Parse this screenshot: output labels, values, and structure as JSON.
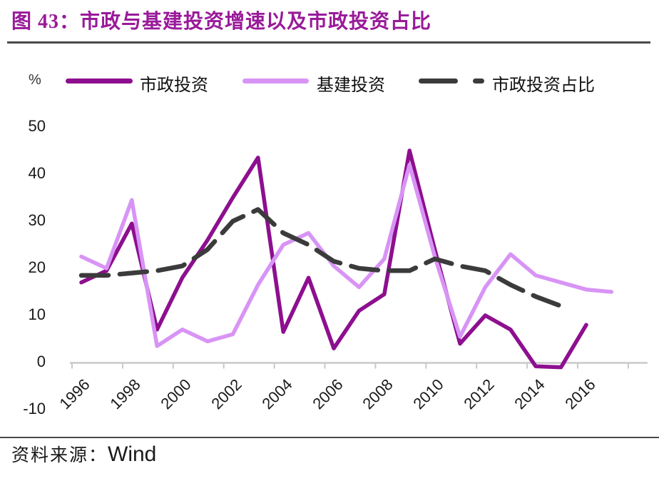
{
  "figure": {
    "title": "图 43：市政与基建投资增速以及市政投资占比"
  },
  "y_unit": "%",
  "legend": [
    {
      "label": "市政投资",
      "color": "#8d0f8f",
      "style": "solid"
    },
    {
      "label": "基建投资",
      "color": "#d894f5",
      "style": "solid"
    },
    {
      "label": "市政投资占比",
      "color": "#3b3b3b",
      "style": "dashed"
    }
  ],
  "source": {
    "label": "资料来源：",
    "name": "Wind"
  },
  "colors": {
    "title": "#991a99",
    "axis": "#c9c9c9",
    "rule": "#4a4a4a",
    "text": "#1a1a1a"
  },
  "chart_data": {
    "type": "line",
    "title": "图 43：市政与基建投资增速以及市政投资占比",
    "xlabel": "",
    "ylabel": "%",
    "x": [
      1996,
      1997,
      1998,
      1999,
      2000,
      2001,
      2002,
      2003,
      2004,
      2005,
      2006,
      2007,
      2008,
      2009,
      2010,
      2011,
      2012,
      2013,
      2014,
      2015,
      2016,
      2017
    ],
    "series": [
      {
        "name": "市政投资",
        "color": "#8d0f8f",
        "dashed": false,
        "values": [
          17,
          19.5,
          29.5,
          7,
          18,
          26,
          35,
          43.5,
          6.5,
          18,
          3,
          11,
          14.5,
          45,
          24,
          4,
          10,
          7,
          -0.8,
          -1,
          8,
          null
        ]
      },
      {
        "name": "基建投资",
        "color": "#d894f5",
        "dashed": false,
        "values": [
          22.5,
          20,
          34.5,
          3.5,
          7,
          4.5,
          6,
          16.5,
          25,
          27.5,
          20.5,
          16,
          22,
          42,
          22.5,
          5.5,
          16,
          23,
          18.5,
          17,
          15.5,
          15
        ]
      },
      {
        "name": "市政投资占比",
        "color": "#3b3b3b",
        "dashed": true,
        "values": [
          18.5,
          18.5,
          19,
          19.5,
          20.5,
          24,
          30,
          32.5,
          27.5,
          25,
          21.5,
          20,
          19.5,
          19.5,
          22,
          20.5,
          19.5,
          16.5,
          14,
          12,
          null,
          null
        ]
      }
    ],
    "xticks": [
      1996,
      1998,
      2000,
      2002,
      2004,
      2006,
      2008,
      2010,
      2012,
      2014,
      2016
    ],
    "yticks": [
      50,
      40,
      30,
      20,
      10,
      0,
      -10
    ],
    "ylim": [
      -10,
      50
    ],
    "grid": false,
    "legend_position": "top"
  }
}
